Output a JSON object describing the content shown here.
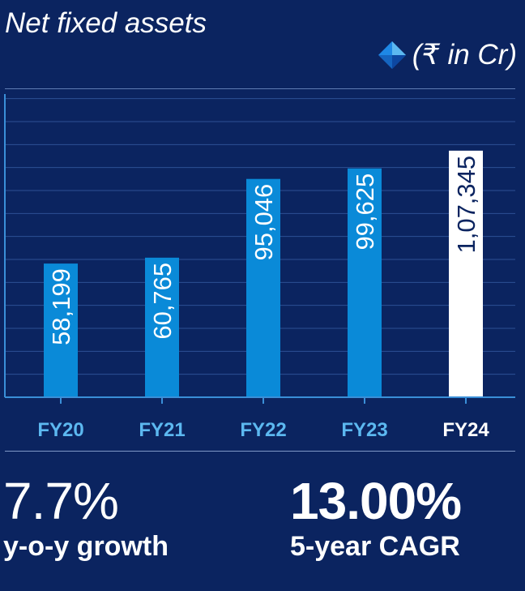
{
  "chart_data": {
    "type": "bar",
    "title": "Net fixed assets",
    "unit": "(₹ in Cr)",
    "categories": [
      "FY20",
      "FY21",
      "FY22",
      "FY23",
      "FY24"
    ],
    "values": [
      58199,
      60765,
      95046,
      99625,
      107345
    ],
    "value_labels": [
      "58,199",
      "60,765",
      "95,046",
      "99,625",
      "1,07,345"
    ],
    "highlight_index": 4,
    "ylim": [
      0,
      132000
    ],
    "grid": true,
    "colors": {
      "bar": "#0a8ad8",
      "bar_highlight": "#ffffff",
      "label_on_bar": "#ffffff",
      "label_on_highlight": "#0b2460",
      "tick": "#5cb8f0",
      "tick_highlight": "#ffffff",
      "grid": "#2c4f95",
      "axis": "#3a8fd8"
    }
  },
  "stats": {
    "yoy": {
      "value": "7.7%",
      "label": "y-o-y growth"
    },
    "cagr": {
      "value": "13.00%",
      "label": "5-year CAGR"
    }
  },
  "colors": {
    "background": "#0b2460"
  }
}
